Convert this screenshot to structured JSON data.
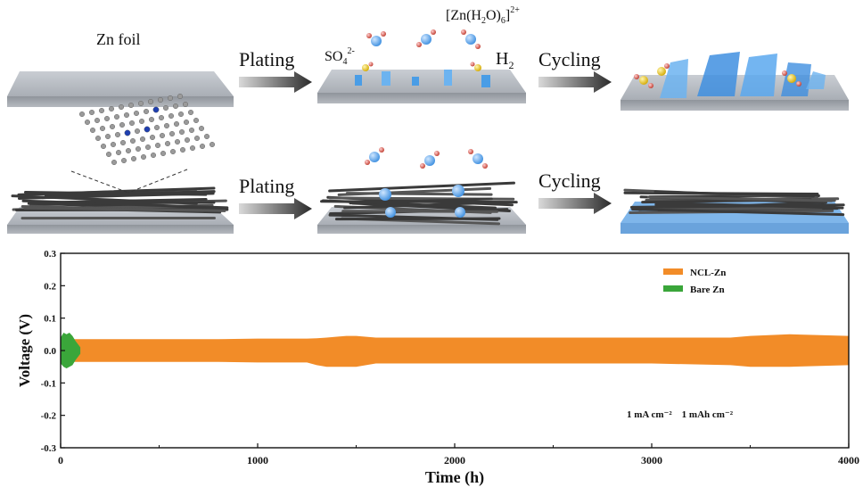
{
  "schematic": {
    "zn_foil_label": "Zn foil",
    "plating_label_1": "Plating",
    "plating_label_2": "Plating",
    "cycling_label_1": "Cycling",
    "cycling_label_2": "Cycling",
    "sulfate_label": "SO",
    "sulfate_sub": "4",
    "sulfate_sup": "2-",
    "complex_label_prefix": "[Zn(H",
    "complex_sub_1": "2",
    "complex_label_mid": "O)",
    "complex_sub_2": "6",
    "complex_label_suffix": "]",
    "complex_sup": "2+",
    "hydrogen_label": "H",
    "hydrogen_sub": "2"
  },
  "chart_data": {
    "type": "area",
    "xlabel": "Time (h)",
    "ylabel": "Voltage (V)",
    "xlim": [
      0,
      4000
    ],
    "ylim": [
      -0.3,
      0.3
    ],
    "x_ticks": [
      0,
      1000,
      2000,
      3000,
      4000
    ],
    "y_ticks": [
      -0.3,
      -0.2,
      -0.1,
      0.0,
      0.1,
      0.2,
      0.3
    ],
    "x_tick_labels": [
      "0",
      "1000",
      "2000",
      "3000",
      "4000"
    ],
    "y_tick_labels": [
      "-0.3",
      "-0.2",
      "-0.1",
      "0.0",
      "0.1",
      "0.2",
      "0.3"
    ],
    "grid": false,
    "legend_position": "top-right",
    "annotation": "1 mA cm⁻²    1 mAh cm⁻²",
    "series": [
      {
        "name": "NCL-Zn",
        "color": "#f28c28",
        "x": [
          0,
          200,
          500,
          800,
          1000,
          1250,
          1300,
          1350,
          1450,
          1500,
          1600,
          2000,
          2500,
          3000,
          3400,
          3500,
          3700,
          4000
        ],
        "upper": [
          0.035,
          0.035,
          0.035,
          0.035,
          0.037,
          0.037,
          0.038,
          0.04,
          0.045,
          0.045,
          0.04,
          0.04,
          0.04,
          0.04,
          0.04,
          0.045,
          0.05,
          0.045
        ],
        "lower": [
          -0.035,
          -0.035,
          -0.035,
          -0.035,
          -0.037,
          -0.037,
          -0.045,
          -0.05,
          -0.05,
          -0.05,
          -0.04,
          -0.04,
          -0.04,
          -0.04,
          -0.045,
          -0.05,
          -0.05,
          -0.045
        ]
      },
      {
        "name": "Bare Zn",
        "color": "#3aa63a",
        "x": [
          0,
          15,
          30,
          45,
          60,
          75,
          100
        ],
        "upper": [
          0.04,
          0.055,
          0.05,
          0.055,
          0.045,
          0.03,
          0.01
        ],
        "lower": [
          -0.04,
          -0.05,
          -0.055,
          -0.05,
          -0.045,
          -0.03,
          -0.01
        ]
      }
    ]
  }
}
